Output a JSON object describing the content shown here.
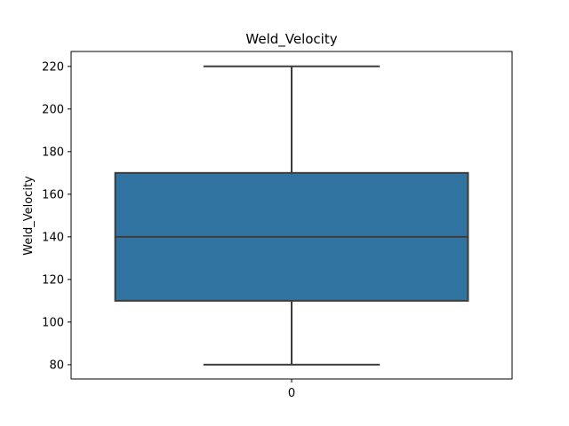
{
  "chart_data": {
    "type": "box",
    "title": "Weld_Velocity",
    "xlabel": "",
    "ylabel": "Weld_Velocity",
    "categories": [
      "0"
    ],
    "boxes": [
      {
        "category": "0",
        "min": 80,
        "q1": 110,
        "median": 140,
        "q3": 170,
        "max": 220
      }
    ],
    "ylim": [
      73.3,
      227.0
    ],
    "yticks": [
      80,
      100,
      120,
      140,
      160,
      180,
      200,
      220
    ],
    "grid": false,
    "colors": {
      "box_fill": "#3274a1",
      "lines": "#3d3d3d",
      "axes": "#000000"
    }
  }
}
